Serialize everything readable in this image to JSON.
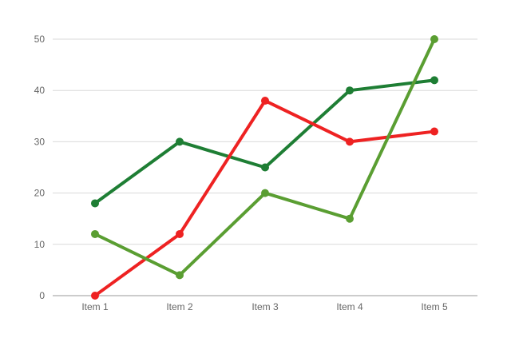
{
  "chart_data": {
    "type": "line",
    "categories": [
      "Item 1",
      "Item 2",
      "Item 3",
      "Item 4",
      "Item 5"
    ],
    "y_ticks": [
      "0",
      "10",
      "20",
      "30",
      "40",
      "50"
    ],
    "ylim": [
      0,
      50
    ],
    "grid": true,
    "legend": "none",
    "series": [
      {
        "color": "#1e7e34",
        "values": [
          18,
          30,
          25,
          40,
          42
        ]
      },
      {
        "color": "#ee2222",
        "values": [
          0,
          12,
          38,
          30,
          32
        ]
      },
      {
        "color": "#5a9e32",
        "values": [
          12,
          4,
          20,
          15,
          50
        ]
      }
    ],
    "colors": {
      "grid": "#d9d9d9",
      "axis": "#999999",
      "tick_text": "#666666"
    }
  }
}
